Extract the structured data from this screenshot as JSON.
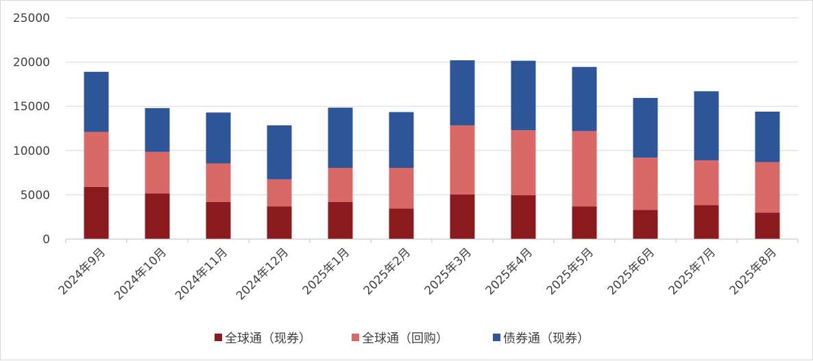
{
  "chart_data": {
    "type": "bar",
    "stacked": true,
    "categories": [
      "2024年9月",
      "2024年10月",
      "2024年11月",
      "2024年12月",
      "2025年1月",
      "2025年2月",
      "2025年3月",
      "2025年4月",
      "2025年5月",
      "2025年6月",
      "2025年7月",
      "2025年8月"
    ],
    "series": [
      {
        "name": "全球通（现券）",
        "color": "#8B1A1F",
        "values": [
          5900,
          5150,
          4200,
          3700,
          4200,
          3450,
          5050,
          4950,
          3700,
          3300,
          3850,
          3000
        ]
      },
      {
        "name": "全球通（回购）",
        "color": "#D96966",
        "values": [
          6200,
          4700,
          4350,
          3050,
          3850,
          4600,
          7800,
          7350,
          8500,
          5900,
          5050,
          5700
        ]
      },
      {
        "name": "债券通（现券）",
        "color": "#2E5597",
        "values": [
          6800,
          4950,
          5750,
          6100,
          6800,
          6300,
          7350,
          7850,
          7250,
          6750,
          7800,
          5700
        ]
      }
    ],
    "ylim": [
      0,
      25000
    ],
    "yticks": [
      0,
      5000,
      10000,
      15000,
      20000,
      25000
    ],
    "grid": true,
    "legend": "bottom"
  }
}
